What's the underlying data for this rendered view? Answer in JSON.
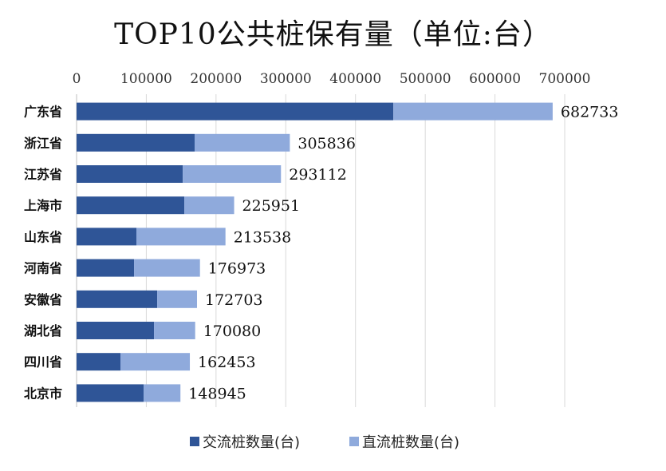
{
  "chart_data": {
    "type": "bar",
    "orientation": "horizontal",
    "stacked": true,
    "title": "TOP10公共桩保有量（单位:台）",
    "categories": [
      "广东省",
      "浙江省",
      "江苏省",
      "上海市",
      "山东省",
      "河南省",
      "安徽省",
      "湖北省",
      "四川省",
      "北京市"
    ],
    "series": [
      {
        "name": "交流桩数量(台)",
        "color": "#2f5597",
        "values": [
          454200,
          169300,
          152200,
          154500,
          85800,
          82400,
          115600,
          111000,
          62900,
          96100
        ]
      },
      {
        "name": "直流桩数量(台)",
        "color": "#8faadc",
        "values": [
          228533,
          136536,
          140912,
          71451,
          127738,
          94573,
          57103,
          59080,
          99553,
          52845
        ]
      }
    ],
    "total_labels": [
      "682733",
      "305836",
      "293112",
      "225951",
      "213538",
      "176973",
      "172703",
      "170080",
      "162453",
      "148945"
    ],
    "xlim": [
      0,
      700000
    ],
    "xticks": [
      "0",
      "100000",
      "200000",
      "300000",
      "400000",
      "500000",
      "600000",
      "700000"
    ],
    "x_axis_position": "top",
    "grid": true,
    "legend_position": "bottom"
  }
}
